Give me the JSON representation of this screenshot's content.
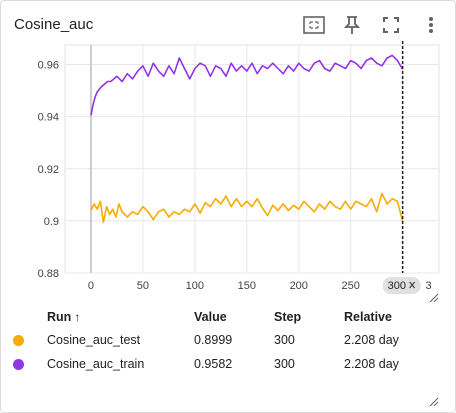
{
  "card": {
    "title": "Cosine_auc"
  },
  "toolbar": {
    "fit_icon": "fit-domain-icon",
    "pin_icon": "pin-icon",
    "fullscreen_icon": "fullscreen-icon",
    "more_icon": "more-vert-icon"
  },
  "chart_data": {
    "type": "line",
    "title": "Cosine_auc",
    "xlabel": "",
    "ylabel": "",
    "x_ticks": [
      "0",
      "50",
      "100",
      "150",
      "200",
      "250",
      "300",
      "3"
    ],
    "y_ticks": [
      "0.96",
      "0.94",
      "0.92",
      "0.9",
      "0.88"
    ],
    "xlim": [
      -25,
      335
    ],
    "ylim": [
      0.88,
      0.9675
    ],
    "grid": true,
    "cursor_step": 300,
    "cursor_label": "300",
    "series": [
      {
        "name": "Cosine_auc_test",
        "color": "#f9ab00",
        "x": [
          0,
          3,
          6,
          9,
          12,
          15,
          18,
          21,
          24,
          27,
          30,
          35,
          40,
          45,
          50,
          55,
          60,
          65,
          70,
          75,
          80,
          85,
          90,
          95,
          100,
          105,
          110,
          115,
          120,
          125,
          130,
          135,
          140,
          145,
          150,
          155,
          160,
          165,
          170,
          175,
          180,
          185,
          190,
          195,
          200,
          205,
          210,
          215,
          220,
          225,
          230,
          235,
          240,
          245,
          250,
          255,
          260,
          265,
          270,
          275,
          280,
          285,
          290,
          295,
          300
        ],
        "values": [
          0.904,
          0.9065,
          0.9045,
          0.9075,
          0.8995,
          0.9055,
          0.9025,
          0.9045,
          0.9015,
          0.9065,
          0.9035,
          0.9015,
          0.9035,
          0.9025,
          0.9055,
          0.9035,
          0.9005,
          0.9035,
          0.9045,
          0.9015,
          0.9035,
          0.9025,
          0.9045,
          0.9035,
          0.9065,
          0.903,
          0.907,
          0.9055,
          0.9085,
          0.9065,
          0.9095,
          0.9055,
          0.9085,
          0.9055,
          0.9075,
          0.9055,
          0.9085,
          0.905,
          0.902,
          0.906,
          0.904,
          0.9065,
          0.904,
          0.906,
          0.9045,
          0.9075,
          0.9055,
          0.9035,
          0.9065,
          0.9045,
          0.9075,
          0.9055,
          0.9045,
          0.9075,
          0.9045,
          0.9075,
          0.9065,
          0.9055,
          0.9085,
          0.9035,
          0.9105,
          0.9065,
          0.9085,
          0.9075,
          0.8999
        ]
      },
      {
        "name": "Cosine_auc_train",
        "color": "#9334e6",
        "x": [
          0,
          2,
          4,
          6,
          8,
          10,
          13,
          16,
          19,
          22,
          25,
          30,
          35,
          40,
          45,
          50,
          55,
          60,
          65,
          70,
          75,
          80,
          85,
          90,
          95,
          100,
          105,
          110,
          115,
          120,
          125,
          130,
          135,
          140,
          145,
          150,
          155,
          160,
          165,
          170,
          175,
          180,
          185,
          190,
          195,
          200,
          205,
          210,
          215,
          220,
          225,
          230,
          235,
          240,
          245,
          250,
          255,
          260,
          265,
          270,
          275,
          280,
          285,
          290,
          295,
          300
        ],
        "values": [
          0.9405,
          0.9445,
          0.9475,
          0.9495,
          0.9505,
          0.9515,
          0.9525,
          0.9535,
          0.9535,
          0.9545,
          0.9555,
          0.9535,
          0.9565,
          0.9545,
          0.9575,
          0.9595,
          0.9555,
          0.9605,
          0.9575,
          0.9555,
          0.9595,
          0.9565,
          0.9625,
          0.9585,
          0.9545,
          0.9585,
          0.9605,
          0.9595,
          0.9555,
          0.9595,
          0.9585,
          0.9555,
          0.9605,
          0.9575,
          0.9595,
          0.9575,
          0.9605,
          0.9565,
          0.9595,
          0.9585,
          0.9605,
          0.9585,
          0.9565,
          0.9595,
          0.9575,
          0.9605,
          0.9585,
          0.9575,
          0.9605,
          0.9615,
          0.9585,
          0.9575,
          0.9605,
          0.9595,
          0.9585,
          0.9615,
          0.9605,
          0.9585,
          0.9615,
          0.9625,
          0.9605,
          0.9595,
          0.9625,
          0.9635,
          0.9615,
          0.9582
        ]
      }
    ]
  },
  "table": {
    "headers": {
      "run": "Run",
      "sort_arrow": "↑",
      "value": "Value",
      "step": "Step",
      "relative": "Relative"
    },
    "rows": [
      {
        "color": "#f9ab00",
        "run": "Cosine_auc_test",
        "value": "0.8999",
        "step": "300",
        "relative": "2.208 day"
      },
      {
        "color": "#9334e6",
        "run": "Cosine_auc_train",
        "value": "0.9582",
        "step": "300",
        "relative": "2.208 day"
      }
    ]
  }
}
